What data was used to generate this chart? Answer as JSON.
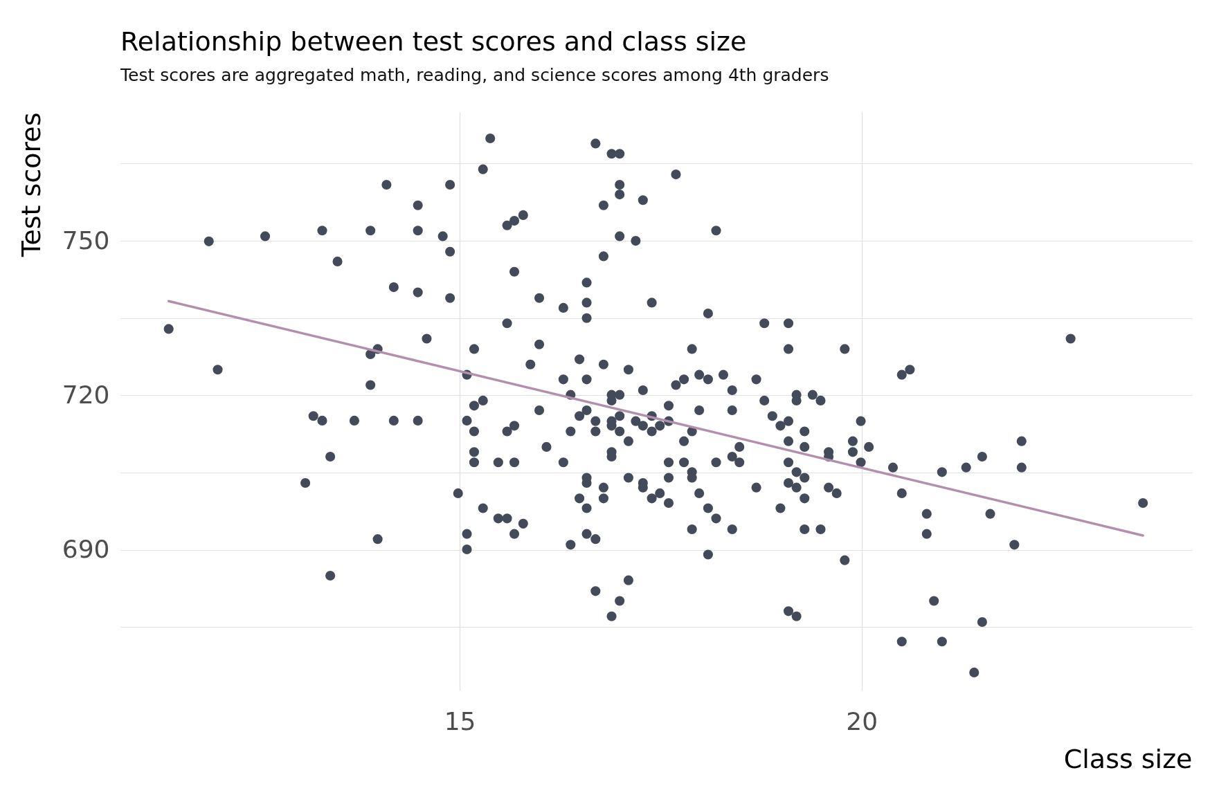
{
  "chart_data": {
    "type": "scatter",
    "title": "Relationship between test scores and class size",
    "subtitle": "Test scores are aggregated math, reading, and science scores among 4th graders",
    "xlabel": "Class size",
    "ylabel": "Test scores",
    "xlim": [
      10.78,
      24.11
    ],
    "ylim": [
      662.7,
      775
    ],
    "xticks": [
      15,
      20
    ],
    "yticks": [
      {
        "value": 675,
        "label": null
      },
      690,
      {
        "value": 705,
        "label": null
      },
      720,
      {
        "value": 735,
        "label": null
      },
      750,
      {
        "value": 765,
        "label": null
      }
    ],
    "grid": true,
    "series": [
      {
        "marker": "circle",
        "color": "#434a5a",
        "x": [
          11.38,
          11.88,
          11.99,
          12.58,
          13.08,
          13.18,
          13.29,
          13.29,
          13.39,
          13.39,
          13.48,
          13.69,
          13.89,
          13.89,
          13.89,
          13.98,
          13.98,
          14.09,
          14.18,
          14.18,
          14.48,
          14.48,
          14.48,
          14.48,
          14.59,
          14.79,
          14.88,
          14.88,
          14.88,
          14.98,
          15.09,
          15.09,
          15.09,
          15.09,
          15.18,
          15.18,
          15.18,
          15.18,
          15.18,
          15.29,
          15.29,
          15.29,
          15.38,
          15.48,
          15.48,
          15.59,
          15.59,
          15.59,
          15.59,
          15.68,
          15.68,
          15.68,
          15.68,
          15.68,
          15.79,
          15.79,
          15.88,
          15.99,
          15.99,
          15.99,
          16.08,
          16.29,
          16.29,
          16.29,
          16.38,
          16.38,
          16.38,
          16.49,
          16.49,
          16.49,
          16.58,
          16.58,
          16.58,
          16.58,
          16.58,
          16.58,
          16.58,
          16.58,
          16.58,
          16.69,
          16.69,
          16.69,
          16.69,
          16.69,
          16.79,
          16.79,
          16.79,
          16.79,
          16.79,
          16.89,
          16.89,
          16.89,
          16.89,
          16.89,
          16.89,
          16.89,
          16.89,
          16.99,
          16.99,
          16.99,
          16.99,
          16.99,
          16.99,
          16.99,
          16.99,
          17.1,
          17.1,
          17.1,
          17.1,
          17.19,
          17.19,
          17.28,
          17.28,
          17.28,
          17.28,
          17.28,
          17.39,
          17.39,
          17.39,
          17.39,
          17.49,
          17.49,
          17.6,
          17.6,
          17.6,
          17.6,
          17.6,
          17.69,
          17.69,
          17.79,
          17.79,
          17.79,
          17.89,
          17.89,
          17.89,
          17.89,
          17.89,
          17.98,
          17.98,
          17.98,
          18.09,
          18.09,
          18.09,
          18.09,
          18.19,
          18.19,
          18.19,
          18.28,
          18.39,
          18.39,
          18.39,
          18.39,
          18.48,
          18.48,
          18.69,
          18.69,
          18.79,
          18.79,
          18.89,
          18.99,
          18.99,
          19.09,
          19.09,
          19.09,
          19.09,
          19.09,
          19.09,
          19.09,
          19.19,
          19.19,
          19.19,
          19.19,
          19.19,
          19.29,
          19.29,
          19.29,
          19.29,
          19.29,
          19.39,
          19.49,
          19.49,
          19.59,
          19.59,
          19.59,
          19.69,
          19.79,
          19.79,
          19.89,
          19.89,
          19.99,
          19.99,
          20.09,
          20.39,
          20.5,
          20.5,
          20.5,
          20.6,
          20.81,
          20.81,
          20.9,
          21.0,
          21.0,
          21.3,
          21.4,
          21.5,
          21.5,
          21.6,
          21.9,
          21.99,
          21.99,
          22.6,
          23.5
        ],
        "values": [
          732.9,
          749.9,
          725.0,
          750.9,
          703.0,
          716.0,
          752.0,
          715.1,
          708.1,
          685.0,
          746.0,
          715.1,
          752.0,
          728.0,
          722.0,
          729.0,
          692.1,
          760.9,
          741.0,
          715.1,
          756.9,
          752.0,
          740.0,
          715.1,
          731.0,
          750.9,
          760.9,
          747.9,
          738.9,
          701.0,
          724.0,
          715.1,
          693.1,
          690.1,
          729.0,
          718.0,
          713.0,
          709.0,
          707.0,
          763.9,
          719.0,
          698.1,
          769.9,
          707.0,
          696.1,
          753.0,
          734.0,
          713.0,
          696.1,
          753.9,
          744.0,
          714.1,
          707.0,
          693.1,
          755.0,
          695.1,
          726.0,
          738.9,
          729.9,
          717.1,
          710.0,
          737.0,
          723.1,
          707.0,
          720.1,
          713.0,
          691.0,
          727.0,
          716.0,
          700.0,
          741.9,
          738.0,
          735.0,
          723.1,
          717.1,
          704.0,
          703.0,
          698.1,
          693.1,
          768.9,
          715.0,
          713.0,
          692.1,
          682.0,
          756.9,
          747.0,
          726.0,
          702.1,
          700.0,
          766.9,
          720.1,
          719.0,
          715.0,
          714.1,
          709.0,
          708.1,
          677.1,
          766.9,
          760.9,
          759.0,
          750.9,
          720.1,
          716.0,
          713.0,
          680.1,
          725.0,
          711.1,
          704.0,
          684.1,
          750.0,
          715.0,
          757.9,
          721.0,
          714.1,
          703.0,
          702.1,
          738.0,
          716.0,
          713.0,
          700.0,
          714.1,
          701.0,
          718.0,
          715.0,
          707.0,
          704.0,
          699.1,
          762.9,
          722.0,
          723.1,
          711.1,
          707.0,
          729.0,
          713.0,
          705.1,
          704.0,
          694.0,
          724.0,
          717.1,
          701.0,
          735.9,
          723.1,
          698.1,
          689.1,
          752.0,
          707.0,
          696.1,
          724.0,
          721.0,
          717.1,
          708.1,
          694.0,
          710.0,
          707.0,
          723.1,
          702.1,
          734.0,
          719.0,
          716.0,
          714.1,
          698.1,
          734.0,
          729.0,
          715.0,
          711.1,
          707.0,
          703.0,
          678.1,
          720.1,
          719.0,
          705.1,
          702.1,
          677.1,
          713.0,
          710.0,
          704.0,
          700.0,
          694.0,
          720.1,
          719.0,
          694.0,
          709.0,
          708.1,
          702.1,
          701.0,
          729.0,
          688.0,
          711.1,
          709.0,
          715.0,
          707.0,
          710.0,
          706.0,
          724.0,
          701.0,
          672.2,
          725.0,
          697.0,
          693.1,
          680.1,
          705.1,
          672.2,
          706.0,
          666.2,
          708.1,
          676.0,
          697.0,
          691.0,
          711.1,
          706.0,
          731.0,
          699.1
        ]
      },
      {
        "type": "line",
        "color": "#b48ead",
        "x": [
          11.38,
          23.5
        ],
        "values": [
          738.3,
          692.8
        ]
      }
    ]
  }
}
